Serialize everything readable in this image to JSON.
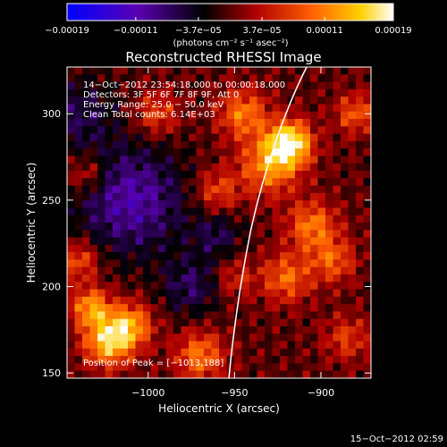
{
  "chart_data": {
    "type": "heatmap",
    "title": "Reconstructed RHESSI Image",
    "xlabel": "Heliocentric X (arcsec)",
    "ylabel": "Heliocentric Y (arcsec)",
    "xlim": [
      -1047,
      -871
    ],
    "ylim": [
      147,
      327
    ],
    "x_ticks": [
      -1000,
      -950,
      -900
    ],
    "x_tick_labels": [
      "−1000",
      "−950",
      "−900"
    ],
    "y_ticks": [
      150,
      200,
      250,
      300
    ],
    "y_tick_labels": [
      "150",
      "200",
      "250",
      "300"
    ],
    "colorbar": {
      "range": [
        -0.00019,
        0.00019
      ],
      "ticks": [
        -0.00019,
        -0.00011,
        -3.7e-05,
        3.7e-05,
        0.00011,
        0.00019
      ],
      "tick_labels": [
        "−0.00019",
        "−0.00011",
        "−3.7e−05",
        "3.7e−05",
        "0.00011",
        "0.00019"
      ],
      "units": "(photons cm⁻² s⁻¹ asec⁻²)",
      "colormap": [
        "#0000ff",
        "#5a00b0",
        "#000000",
        "#b00000",
        "#ff6000",
        "#ffd000",
        "#ffffff"
      ]
    },
    "annotations": [
      "14−Oct−2012 23:54:18.000 to 00:00:18.000",
      "Detectors: 3F 5F 6F 7F 8F 9F, Att 0",
      "Energy Range: 25.0 − 50.0 keV",
      "Clean    Total counts: 6.14E+03"
    ],
    "peak_label": "Position of Peak = [−1013,188]",
    "limb": {
      "color": "#ffffff"
    }
  },
  "footer": {
    "timestamp": "15−Oct−2012 02:59"
  }
}
